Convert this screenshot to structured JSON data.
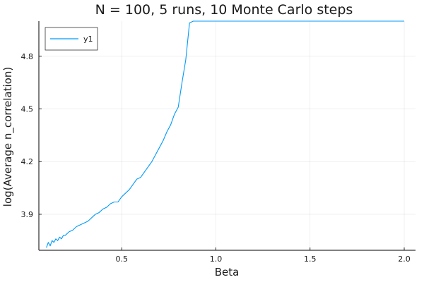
{
  "chart_data": {
    "type": "line",
    "title": "N = 100, 5 runs, 10  Monte Carlo steps",
    "xlabel": "Beta",
    "ylabel": "log(Average n_correlation)",
    "xlim": [
      0.06,
      2.06
    ],
    "ylim": [
      3.695,
      5.0
    ],
    "xticks": [
      0.5,
      1.0,
      1.5,
      2.0
    ],
    "xtick_labels": [
      "0.5",
      "1.0",
      "1.5",
      "2.0"
    ],
    "yticks": [
      3.9,
      4.2,
      4.5,
      4.8
    ],
    "ytick_labels": [
      "3.9",
      "4.2",
      "4.5",
      "4.8"
    ],
    "grid": true,
    "legend_position": "top-left",
    "series": [
      {
        "name": "y1",
        "color": "#009AFA",
        "x": [
          0.1,
          0.11,
          0.12,
          0.13,
          0.14,
          0.15,
          0.16,
          0.17,
          0.18,
          0.19,
          0.2,
          0.22,
          0.24,
          0.26,
          0.28,
          0.3,
          0.32,
          0.34,
          0.36,
          0.38,
          0.4,
          0.42,
          0.44,
          0.46,
          0.48,
          0.5,
          0.52,
          0.54,
          0.56,
          0.58,
          0.6,
          0.62,
          0.64,
          0.66,
          0.68,
          0.7,
          0.72,
          0.74,
          0.76,
          0.78,
          0.8,
          0.82,
          0.84,
          0.86,
          0.88,
          0.9,
          0.92,
          1.0,
          1.2,
          1.4,
          1.6,
          1.8,
          2.0
        ],
        "y": [
          3.71,
          3.74,
          3.72,
          3.75,
          3.74,
          3.76,
          3.75,
          3.77,
          3.76,
          3.78,
          3.78,
          3.8,
          3.81,
          3.83,
          3.84,
          3.85,
          3.86,
          3.88,
          3.9,
          3.91,
          3.93,
          3.94,
          3.96,
          3.97,
          3.97,
          4.0,
          4.02,
          4.04,
          4.07,
          4.1,
          4.11,
          4.14,
          4.17,
          4.2,
          4.24,
          4.28,
          4.32,
          4.37,
          4.41,
          4.47,
          4.51,
          4.65,
          4.78,
          4.99,
          5.0,
          5.0,
          5.0,
          5.0,
          5.0,
          5.0,
          5.0,
          5.0,
          5.0
        ]
      }
    ]
  }
}
